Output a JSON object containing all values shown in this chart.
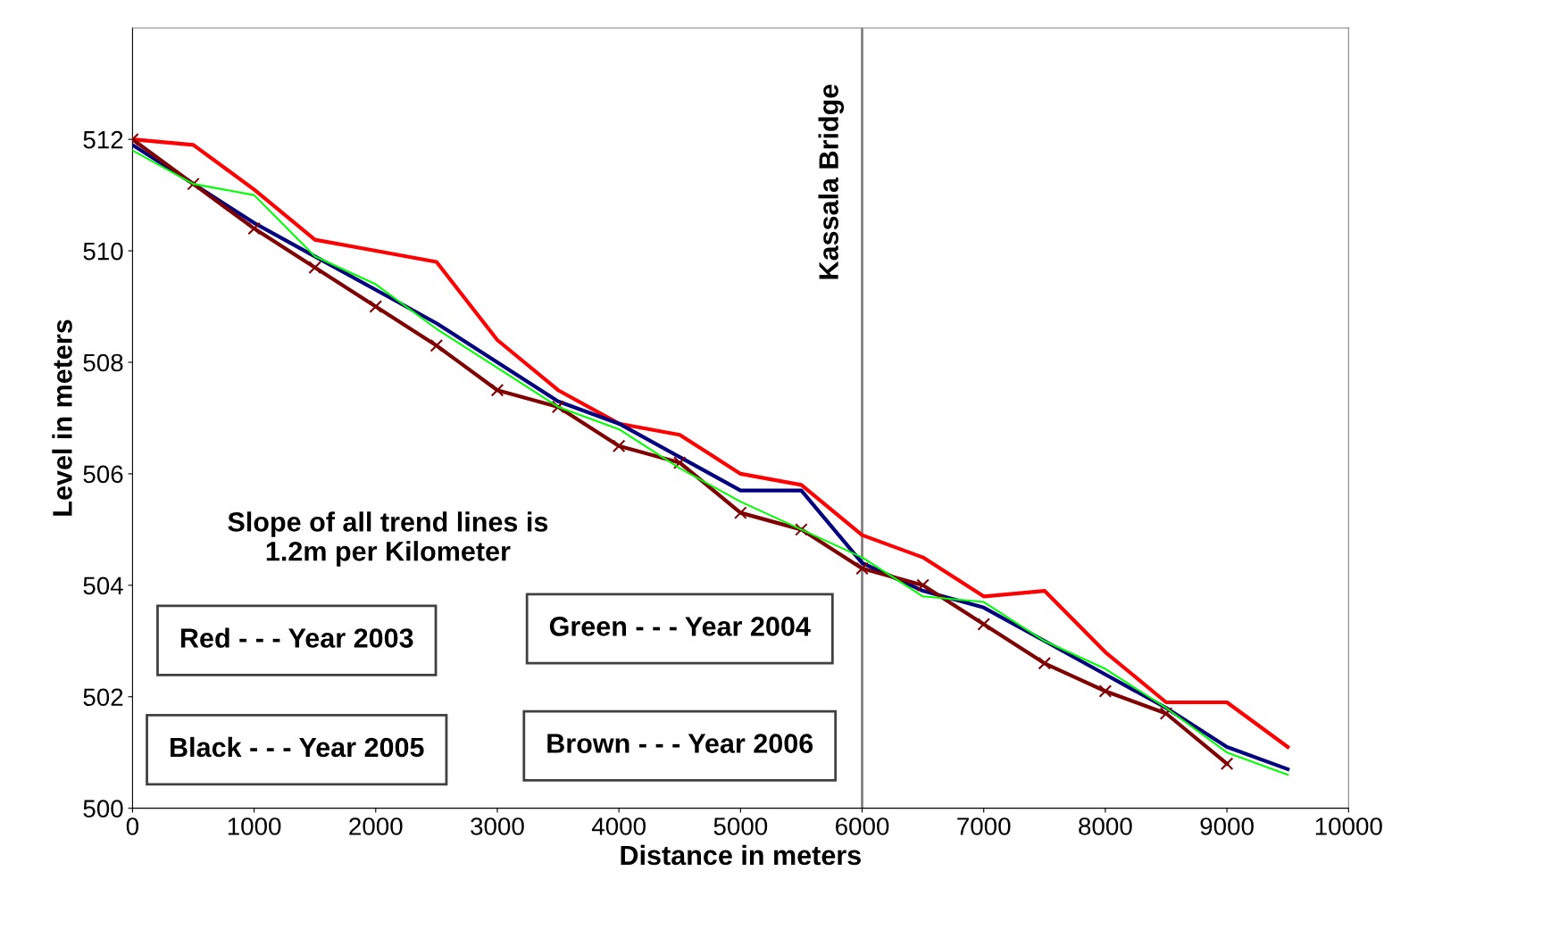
{
  "chart_data": {
    "type": "line",
    "xlabel": "Distance in meters",
    "ylabel": "Level in meters",
    "x": [
      0,
      500,
      1000,
      1500,
      2000,
      2500,
      3000,
      3500,
      4000,
      4500,
      5000,
      5500,
      6000,
      6500,
      7000,
      7500,
      8000,
      8500,
      9000,
      9500
    ],
    "series": [
      {
        "color": "#ff0000",
        "values": [
          512.0,
          511.9,
          511.1,
          510.2,
          510.0,
          509.8,
          508.4,
          507.5,
          506.9,
          506.7,
          506.0,
          505.8,
          504.9,
          504.5,
          503.8,
          503.9,
          502.8,
          501.9,
          501.9,
          501.1
        ]
      },
      {
        "color": "#00ff00",
        "values": [
          511.8,
          511.2,
          511.0,
          509.9,
          509.4,
          508.6,
          507.9,
          507.2,
          506.8,
          506.1,
          505.5,
          505.0,
          504.5,
          503.8,
          503.7,
          503.0,
          502.5,
          501.8,
          501.0,
          500.6
        ]
      },
      {
        "color": "#000080",
        "values": [
          511.9,
          511.2,
          510.5,
          509.9,
          509.3,
          508.7,
          508.0,
          507.3,
          506.9,
          506.3,
          505.7,
          505.7,
          504.4,
          503.9,
          503.6,
          503.0,
          502.4,
          501.8,
          501.1,
          500.7
        ]
      },
      {
        "color": "#800000",
        "marker": "cross",
        "values": [
          512.0,
          511.2,
          510.4,
          509.7,
          509.0,
          508.3,
          507.5,
          507.2,
          506.5,
          506.2,
          505.3,
          505.0,
          504.3,
          504.0,
          503.3,
          502.6,
          502.1,
          501.7,
          500.8,
          null
        ]
      }
    ],
    "xlim": [
      0,
      10000
    ],
    "xticks": [
      0,
      1000,
      2000,
      3000,
      4000,
      5000,
      6000,
      7000,
      8000,
      9000,
      10000
    ],
    "ylim": [
      500,
      514
    ],
    "yticks": [
      500,
      502,
      504,
      506,
      508,
      510,
      512
    ],
    "ref_lines": [
      {
        "axis": "x",
        "value": 6000,
        "label": "Kassala Bridge",
        "color": "#808080"
      }
    ],
    "annotations": [
      "Slope of all trend lines is\n1.2m per Kilometer",
      "Red - - - Year 2003",
      "Green - - - Year 2004",
      "Black - - - Year 2005",
      "Brown - - - Year 2006"
    ],
    "grid": false,
    "line_style": "solid"
  }
}
